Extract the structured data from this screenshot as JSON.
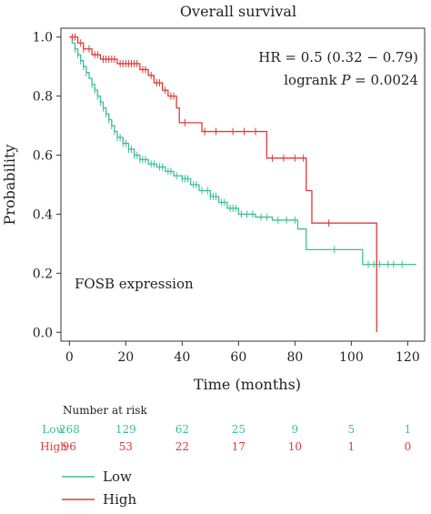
{
  "chart_data": {
    "type": "line",
    "title": "Overall survival",
    "xlabel": "Time (months)",
    "ylabel": "Probability",
    "xlim": [
      -3,
      126
    ],
    "ylim": [
      -0.03,
      1.03
    ],
    "xticks": [
      0,
      20,
      40,
      60,
      80,
      100,
      120
    ],
    "yticks": [
      0.0,
      0.2,
      0.4,
      0.6,
      0.8,
      1.0
    ],
    "ytick_labels": [
      "0.0",
      "0.2",
      "0.4",
      "0.6",
      "0.8",
      "1.0"
    ],
    "annotations": {
      "hr": "HR = 0.5 (0.32 − 0.79)",
      "logrank_prefix": "logrank ",
      "logrank_p": "P",
      "logrank_suffix": " = 0.0024",
      "gene": "FOSB expression"
    },
    "grid": false,
    "legend_position": "bottom-left",
    "colors": {
      "low": "#3dbf99",
      "high": "#e03a3a",
      "axis": "#333333"
    },
    "series": [
      {
        "name": "Low",
        "key": "low",
        "steps": [
          [
            0,
            1.0
          ],
          [
            1,
            0.98
          ],
          [
            2,
            0.96
          ],
          [
            3,
            0.94
          ],
          [
            4,
            0.92
          ],
          [
            5,
            0.9
          ],
          [
            6,
            0.88
          ],
          [
            7,
            0.86
          ],
          [
            8,
            0.84
          ],
          [
            9,
            0.82
          ],
          [
            10,
            0.8
          ],
          [
            11,
            0.78
          ],
          [
            12,
            0.76
          ],
          [
            13,
            0.74
          ],
          [
            14,
            0.72
          ],
          [
            15,
            0.7
          ],
          [
            16,
            0.68
          ],
          [
            17,
            0.66
          ],
          [
            19,
            0.64
          ],
          [
            21,
            0.62
          ],
          [
            23,
            0.6
          ],
          [
            25,
            0.585
          ],
          [
            28,
            0.57
          ],
          [
            31,
            0.56
          ],
          [
            34,
            0.545
          ],
          [
            37,
            0.53
          ],
          [
            40,
            0.52
          ],
          [
            43,
            0.5
          ],
          [
            46,
            0.48
          ],
          [
            50,
            0.46
          ],
          [
            53,
            0.44
          ],
          [
            56,
            0.42
          ],
          [
            60,
            0.4
          ],
          [
            66,
            0.39
          ],
          [
            72,
            0.38
          ],
          [
            81,
            0.35
          ],
          [
            84,
            0.28
          ],
          [
            104,
            0.23
          ],
          [
            123,
            0.23
          ]
        ],
        "censor_x": [
          2,
          3,
          4,
          5,
          6,
          8,
          9,
          10,
          11,
          12,
          13,
          14,
          15,
          16,
          17,
          18,
          19,
          20,
          21,
          22,
          23,
          24,
          25,
          26,
          27,
          29,
          30,
          32,
          33,
          35,
          36,
          38,
          40,
          41,
          42,
          44,
          45,
          47,
          49,
          50,
          51,
          52,
          54,
          55,
          57,
          58,
          59,
          61,
          63,
          65,
          68,
          70,
          74,
          77,
          80,
          94,
          106,
          108,
          110,
          113,
          115,
          118
        ]
      },
      {
        "name": "High",
        "key": "high",
        "steps": [
          [
            0,
            1.0
          ],
          [
            3,
            0.98
          ],
          [
            5,
            0.96
          ],
          [
            8,
            0.94
          ],
          [
            11,
            0.925
          ],
          [
            17,
            0.91
          ],
          [
            25,
            0.89
          ],
          [
            28,
            0.87
          ],
          [
            30,
            0.845
          ],
          [
            33,
            0.82
          ],
          [
            35,
            0.8
          ],
          [
            38,
            0.76
          ],
          [
            39,
            0.71
          ],
          [
            47,
            0.68
          ],
          [
            70,
            0.59
          ],
          [
            84,
            0.48
          ],
          [
            86,
            0.37
          ],
          [
            109,
            0.0
          ]
        ],
        "censor_x": [
          1,
          2,
          4,
          5,
          7,
          9,
          10,
          12,
          13,
          14,
          15,
          16,
          18,
          19,
          20,
          21,
          22,
          23,
          24,
          26,
          27,
          29,
          31,
          32,
          34,
          36,
          37,
          41,
          48,
          52,
          58,
          62,
          66,
          72,
          76,
          80,
          83,
          92
        ]
      }
    ],
    "risk_table": {
      "title": "Number at risk",
      "times": [
        0,
        20,
        40,
        60,
        80,
        100,
        120
      ],
      "rows": [
        {
          "label": "Low",
          "key": "low",
          "counts": [
            "268",
            "129",
            "62",
            "25",
            "9",
            "5",
            "1"
          ]
        },
        {
          "label": "High",
          "key": "high",
          "counts": [
            "96",
            "53",
            "22",
            "17",
            "10",
            "1",
            "0"
          ]
        }
      ]
    },
    "legend": [
      {
        "label": "Low",
        "key": "low"
      },
      {
        "label": "High",
        "key": "high"
      }
    ]
  }
}
